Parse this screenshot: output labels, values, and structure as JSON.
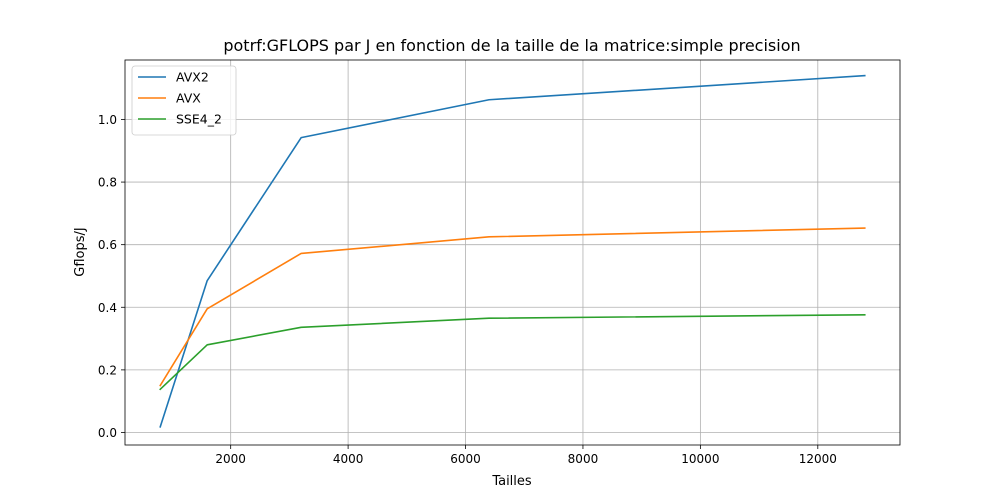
{
  "chart_data": {
    "type": "line",
    "title": "potrf:GFLOPS par J en fonction de la taille de la matrice:simple precision",
    "xlabel": "Tailles",
    "ylabel": "Gflops/J",
    "x": [
      800,
      1600,
      3200,
      6400,
      12800
    ],
    "xlim": [
      200,
      13400
    ],
    "ylim": [
      -0.04,
      1.19
    ],
    "xticks": [
      2000,
      4000,
      6000,
      8000,
      10000,
      12000
    ],
    "xtick_labels": [
      "2000",
      "4000",
      "6000",
      "8000",
      "10000",
      "12000"
    ],
    "yticks": [
      0.0,
      0.2,
      0.4,
      0.6,
      0.8,
      1.0
    ],
    "ytick_labels": [
      "0.0",
      "0.2",
      "0.4",
      "0.6",
      "0.8",
      "1.0"
    ],
    "grid": true,
    "legend_position": "top-left",
    "series": [
      {
        "name": "AVX2",
        "color": "#1f77b4",
        "values": [
          0.018,
          0.485,
          0.942,
          1.063,
          1.14
        ]
      },
      {
        "name": "AVX",
        "color": "#ff7f0e",
        "values": [
          0.15,
          0.395,
          0.572,
          0.625,
          0.653
        ]
      },
      {
        "name": "SSE4_2",
        "color": "#2ca02c",
        "values": [
          0.138,
          0.28,
          0.336,
          0.365,
          0.376
        ]
      }
    ]
  }
}
